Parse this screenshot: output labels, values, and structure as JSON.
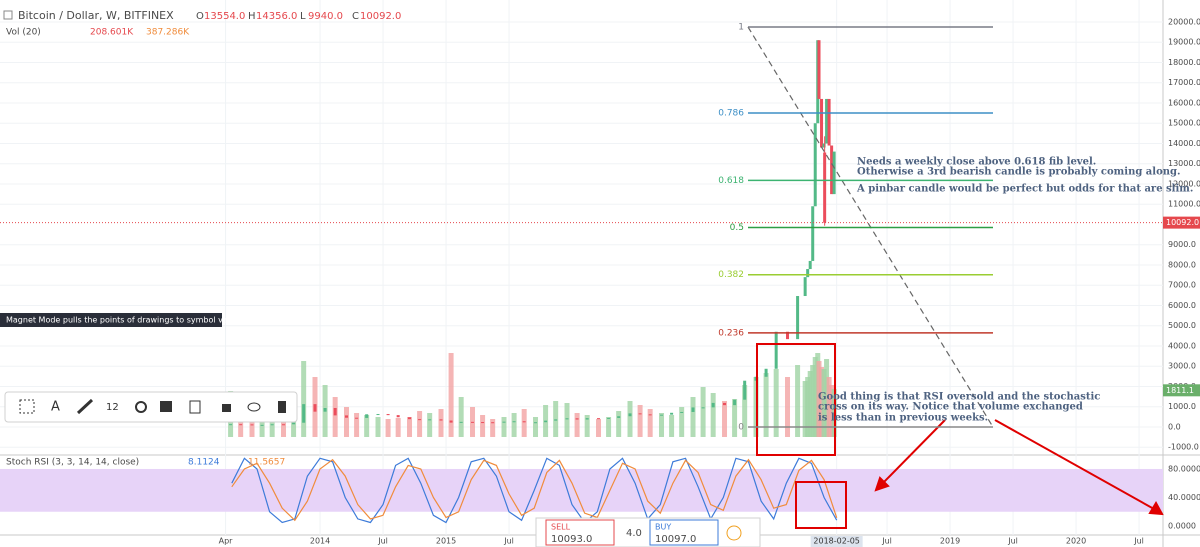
{
  "header": {
    "title": "Bitcoin / Dollar, W, BITFINEX",
    "ohlc": [
      {
        "name": "O",
        "value": 13554,
        "label": "13554.0"
      },
      {
        "name": "H",
        "value": 14356,
        "label": "14356.0"
      },
      {
        "name": "L",
        "value": 9940,
        "label": "9940.0"
      },
      {
        "name": "C",
        "value": 10092,
        "label": "10092.0"
      }
    ],
    "volume_title": "Vol (20)",
    "volume_values": [
      "208.601K",
      "387.286K"
    ]
  },
  "tooltip": "Magnet Mode pulls the points of drawings to symbol values",
  "toolbar": {
    "font_size": "12"
  },
  "price_chart": {
    "xlim": [
      2011.46,
      2020.69
    ],
    "ylim": [
      -1383,
      21086
    ],
    "xticks": [
      {
        "value": 2013.25,
        "label": "Apr"
      },
      2014,
      {
        "value": 2014.5,
        "label": "Jul"
      },
      2015,
      {
        "value": 2015.5,
        "label": "Jul"
      },
      {
        "value": 2018.1,
        "label": "2018-02-05"
      },
      {
        "value": 2018.5,
        "label": "Jul"
      },
      2019,
      {
        "value": 2019.5,
        "label": "Jul"
      },
      2020,
      {
        "value": 2020.5,
        "label": "Jul"
      }
    ],
    "yticks": [
      {
        "value": 20000,
        "label": "20000.0"
      },
      {
        "value": 19000,
        "label": "19000.0"
      },
      {
        "value": 18000,
        "label": "18000.0"
      },
      {
        "value": 17000,
        "label": "17000.0"
      },
      {
        "value": 16000,
        "label": "16000.0"
      },
      {
        "value": 15000,
        "label": "15000.0"
      },
      {
        "value": 14000,
        "label": "14000.0"
      },
      {
        "value": 13000,
        "label": "13000.0"
      },
      {
        "value": 12000,
        "label": "12000.0"
      },
      {
        "value": 11000,
        "label": "11000.0"
      },
      {
        "value": 9000,
        "label": "9000.0"
      },
      {
        "value": 8000,
        "label": "8000.0"
      },
      {
        "value": 7000,
        "label": "7000.0"
      },
      {
        "value": 6000,
        "label": "6000.0"
      },
      {
        "value": 5000,
        "label": "5000.0"
      },
      {
        "value": 4000,
        "label": "4000.0"
      },
      {
        "value": 3000,
        "label": "3000.0"
      },
      {
        "value": 2000,
        "label": "2000.0"
      },
      {
        "value": 1000,
        "label": "1000.0"
      },
      {
        "value": 0,
        "label": "0.0"
      },
      {
        "value": -1000,
        "label": "-1000.0"
      }
    ],
    "x": [
      2013.29,
      2013.37,
      2013.46,
      2013.54,
      2013.62,
      2013.71,
      2013.79,
      2013.87,
      2013.96,
      2014.04,
      2014.12,
      2014.21,
      2014.29,
      2014.37,
      2014.46,
      2014.54,
      2014.62,
      2014.71,
      2014.79,
      2014.87,
      2014.96,
      2015.04,
      2015.12,
      2015.21,
      2015.29,
      2015.37,
      2015.46,
      2015.54,
      2015.62,
      2015.71,
      2015.79,
      2015.87,
      2015.96,
      2016.04,
      2016.12,
      2016.21,
      2016.29,
      2016.37,
      2016.46,
      2016.54,
      2016.62,
      2016.71,
      2016.79,
      2016.87,
      2016.96,
      2017.04,
      2017.12,
      2017.21,
      2017.29,
      2017.37,
      2017.46,
      2017.54,
      2017.62,
      2017.71,
      2017.79,
      2017.85,
      2017.87,
      2017.89,
      2017.91,
      2017.93,
      2017.95,
      2017.96,
      2017.98,
      2018.0,
      2018.02,
      2018.04,
      2018.06,
      2018.08
    ],
    "closes": [
      139,
      129,
      97,
      106,
      135,
      133,
      211,
      1129,
      757,
      938,
      573,
      458,
      447,
      628,
      640,
      586,
      481,
      388,
      338,
      378,
      320,
      217,
      254,
      244,
      236,
      230,
      263,
      284,
      230,
      236,
      314,
      377,
      430,
      369,
      437,
      416,
      448,
      531,
      673,
      624,
      575,
      609,
      701,
      742,
      966,
      970,
      1190,
      1079,
      1348,
      2286,
      2480,
      2875,
      4703,
      4339,
      6468,
      7400,
      7800,
      8200,
      10900,
      15000,
      19100,
      16200,
      13800,
      14000,
      16200,
      13900,
      11500,
      13600
    ],
    "volumes": [
      230,
      180,
      150,
      120,
      90,
      110,
      160,
      380,
      300,
      260,
      200,
      150,
      120,
      110,
      100,
      90,
      95,
      100,
      130,
      120,
      140,
      420,
      200,
      150,
      110,
      90,
      100,
      120,
      140,
      100,
      160,
      180,
      170,
      120,
      110,
      90,
      100,
      130,
      180,
      160,
      140,
      120,
      110,
      150,
      200,
      250,
      220,
      180,
      190,
      260,
      300,
      320,
      340,
      300,
      360,
      280,
      300,
      330,
      360,
      400,
      420,
      380,
      350,
      340,
      390,
      300,
      260,
      240
    ],
    "volume_ma": 1811.1,
    "fib": [
      {
        "level": 1,
        "price": 19750,
        "color": "#787b86"
      },
      {
        "level": 0.786,
        "price": 15506,
        "color": "#3d8fc6"
      },
      {
        "level": 0.618,
        "price": 12180,
        "color": "#3cb371"
      },
      {
        "level": 0.5,
        "price": 9850,
        "color": "#2e9e44"
      },
      {
        "level": 0.382,
        "price": 7520,
        "color": "#9acd32"
      },
      {
        "level": 0.236,
        "price": 4650,
        "color": "#c0392b"
      },
      {
        "level": 0,
        "price": 0,
        "color": "#888888"
      }
    ],
    "annotations": [
      [
        "Needs a weekly close above 0.618 fib level.",
        "Otherwise a 3rd bearish candle is probably coming along.",
        "A pinbar candle would be perfect but odds for that are slim."
      ],
      [
        "Good thing is that RSI oversold and the stochastic",
        "cross on its way. Notice that volume exchanged",
        "is less than in previous weeks."
      ]
    ]
  },
  "stoch_rsi": {
    "title": "Stoch RSI (3, 3, 14, 14, close)",
    "ylim": [
      -12.6,
      98.2
    ],
    "band": [
      20,
      80
    ],
    "yticks": [
      {
        "value": 80,
        "label": "80.0000"
      },
      {
        "value": 40,
        "label": "40.0000"
      },
      {
        "value": 0,
        "label": "0.0000"
      }
    ],
    "x": [
      2013.3,
      2013.4,
      2013.5,
      2013.6,
      2013.7,
      2013.8,
      2013.9,
      2014.0,
      2014.1,
      2014.2,
      2014.3,
      2014.4,
      2014.5,
      2014.6,
      2014.7,
      2014.8,
      2014.9,
      2015.0,
      2015.1,
      2015.2,
      2015.3,
      2015.4,
      2015.5,
      2015.6,
      2015.7,
      2015.8,
      2015.9,
      2016.0,
      2016.1,
      2016.2,
      2016.3,
      2016.4,
      2016.5,
      2016.6,
      2016.7,
      2016.8,
      2016.9,
      2017.0,
      2017.1,
      2017.2,
      2017.3,
      2017.4,
      2017.5,
      2017.6,
      2017.7,
      2017.8,
      2017.9,
      2018.0,
      2018.1
    ],
    "series": [
      {
        "name": "K",
        "color": "#3d7bd9",
        "values": [
          60,
          95,
          80,
          20,
          5,
          10,
          70,
          95,
          90,
          40,
          10,
          5,
          30,
          85,
          95,
          60,
          15,
          5,
          40,
          90,
          95,
          70,
          20,
          8,
          50,
          95,
          85,
          30,
          5,
          20,
          80,
          95,
          60,
          10,
          30,
          90,
          95,
          55,
          10,
          40,
          95,
          90,
          35,
          10,
          60,
          95,
          88,
          40,
          8.1124
        ]
      },
      {
        "name": "D",
        "color": "#f08c3c",
        "values": [
          55,
          80,
          88,
          60,
          25,
          8,
          35,
          80,
          93,
          70,
          30,
          10,
          15,
          55,
          85,
          80,
          40,
          12,
          20,
          65,
          92,
          85,
          45,
          15,
          25,
          75,
          92,
          60,
          18,
          12,
          50,
          88,
          80,
          35,
          18,
          60,
          92,
          75,
          30,
          22,
          70,
          93,
          65,
          25,
          30,
          78,
          92,
          65,
          11.5657
        ]
      }
    ]
  },
  "order_panel": {
    "sell": "SELL",
    "sell_price": "10093.0",
    "spread": "4.0",
    "buy": "BUY",
    "buy_price": "10097.0"
  }
}
